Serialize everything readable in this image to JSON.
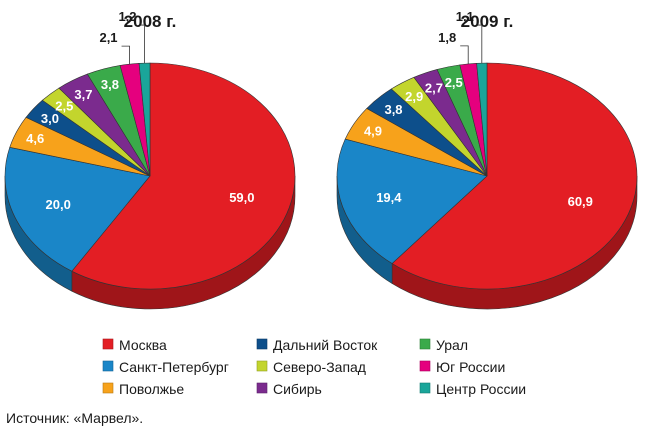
{
  "chart_data": {
    "type": "pie",
    "variant": "3d",
    "categories": [
      "Москва",
      "Санкт-Петербург",
      "Поволжье",
      "Дальний Восток",
      "Северо-Запад",
      "Сибирь",
      "Урал",
      "Юг России",
      "Центр России"
    ],
    "colors": [
      "#e31e24",
      "#1a86c8",
      "#f7a21b",
      "#0d4f8b",
      "#c3d52d",
      "#7b2b8e",
      "#3aaa4a",
      "#e5007e",
      "#1aa59a"
    ],
    "series": [
      {
        "name": "2008 г.",
        "values": [
          59.0,
          20.0,
          4.6,
          3.0,
          2.5,
          3.7,
          3.8,
          2.1,
          1.2
        ],
        "labels": [
          "59,0",
          "20,0",
          "4,6",
          "3,0",
          "2,5",
          "3,7",
          "3,8",
          "2,1",
          "1,2"
        ]
      },
      {
        "name": "2009 г.",
        "values": [
          60.9,
          19.4,
          4.9,
          3.8,
          2.9,
          2.7,
          2.5,
          1.8,
          1.1
        ],
        "labels": [
          "60,9",
          "19,4",
          "4,9",
          "3,8",
          "2,9",
          "2,7",
          "2,5",
          "1,8",
          "1,1"
        ]
      }
    ],
    "legend_position": "bottom"
  },
  "source": "Источник: «Марвел»."
}
